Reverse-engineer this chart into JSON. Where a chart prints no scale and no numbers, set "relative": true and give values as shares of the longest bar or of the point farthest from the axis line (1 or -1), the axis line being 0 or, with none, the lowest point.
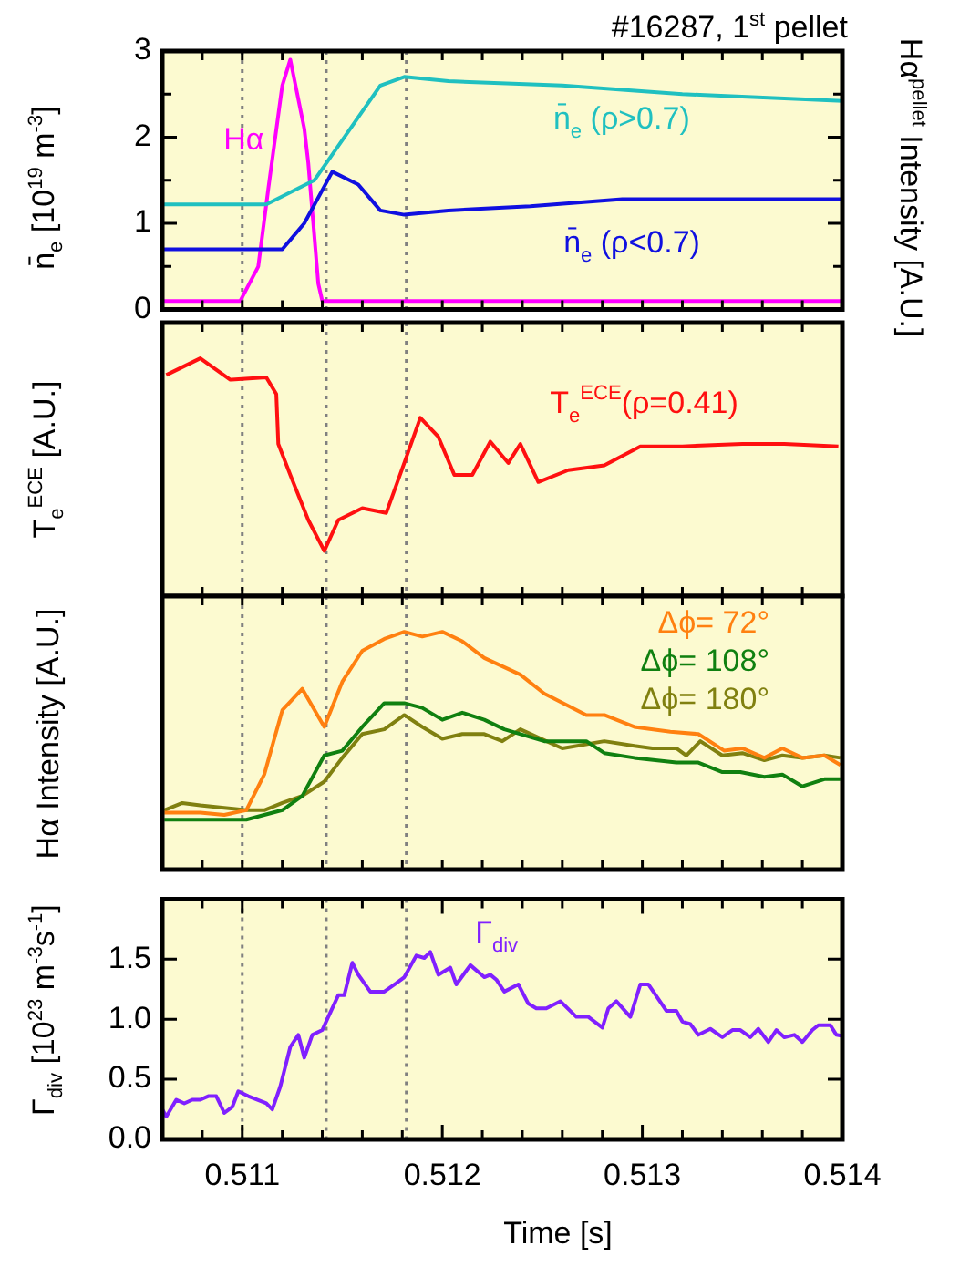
{
  "chart_data": [
    {
      "type": "line",
      "title": "#16287, 1$^{st}$ pellet",
      "ylabel": "n̄$_{e}$ [10$^{19}$ m$^{-3}$]",
      "y2label": "Hα$^{pellet}$ Intensity [A.U.]",
      "xlim": [
        0.5106,
        0.514
      ],
      "xticks": [
        {
          "value": 0.5108,
          "label": null
        },
        {
          "value": 0.511,
          "label": null
        },
        {
          "value": 0.5112,
          "label": null
        },
        {
          "value": 0.5114,
          "label": null
        },
        {
          "value": 0.5116,
          "label": null
        },
        {
          "value": 0.5118,
          "label": null
        },
        {
          "value": 0.512,
          "label": null
        },
        {
          "value": 0.5122,
          "label": null
        },
        {
          "value": 0.5124,
          "label": null
        },
        {
          "value": 0.5126,
          "label": null
        },
        {
          "value": 0.5128,
          "label": null
        },
        {
          "value": 0.513,
          "label": null
        },
        {
          "value": 0.5132,
          "label": null
        },
        {
          "value": 0.5134,
          "label": null
        },
        {
          "value": 0.5136,
          "label": null
        },
        {
          "value": 0.5138,
          "label": null
        }
      ],
      "ylim": [
        0,
        3
      ],
      "yticks": [
        0,
        {
          "value": 0.5,
          "label": null
        },
        1,
        {
          "value": 1.5,
          "label": null
        },
        2,
        {
          "value": 2.5,
          "label": null
        },
        3
      ],
      "tick_labels": "y",
      "marker": "none",
      "grid": false,
      "ref_lines": [
        {
          "axis": "x",
          "value": 0.511,
          "color": "#808080",
          "line_style": "dotted"
        },
        {
          "axis": "x",
          "value": 0.51142,
          "color": "#808080",
          "line_style": "dotted"
        },
        {
          "axis": "x",
          "value": 0.51182,
          "color": "#808080",
          "line_style": "dotted"
        }
      ],
      "series": [
        {
          "name": "n̄$_{e}$ (ρ>0.7)",
          "color": "#20c0c0",
          "x": [
            0.5106,
            0.51112,
            0.51136,
            0.51151,
            0.51169,
            0.51181,
            0.51203,
            0.5126,
            0.5132,
            0.514
          ],
          "values": [
            1.22,
            1.22,
            1.5,
            2.0,
            2.6,
            2.7,
            2.65,
            2.6,
            2.5,
            2.42
          ]
        },
        {
          "name": "n̄$_{e}$ (ρ<0.7)",
          "color": "#1010e0",
          "x": [
            0.5106,
            0.5112,
            0.51131,
            0.51145,
            0.51158,
            0.51169,
            0.51181,
            0.51203,
            0.51244,
            0.5129,
            0.514
          ],
          "values": [
            0.7,
            0.7,
            1.0,
            1.6,
            1.45,
            1.15,
            1.1,
            1.15,
            1.2,
            1.28,
            1.28
          ]
        },
        {
          "name": "Hα",
          "color": "#ff00ff",
          "x": [
            0.5106,
            0.51099,
            0.51108,
            0.51113,
            0.5112,
            0.51124,
            0.51131,
            0.51133,
            0.51138,
            0.5114,
            0.514
          ],
          "values": [
            0.1,
            0.1,
            0.5,
            1.4,
            2.6,
            2.9,
            2.1,
            1.7,
            0.3,
            0.1,
            0.1
          ]
        }
      ]
    },
    {
      "type": "line",
      "ylabel": "T$_{e}$$^{ECE}$ [A.U.]",
      "relative": true,
      "xlim": [
        0.5106,
        0.514
      ],
      "xticks": [
        {
          "value": 0.5108,
          "label": null
        },
        {
          "value": 0.511,
          "label": null
        },
        {
          "value": 0.5112,
          "label": null
        },
        {
          "value": 0.5114,
          "label": null
        },
        {
          "value": 0.5116,
          "label": null
        },
        {
          "value": 0.5118,
          "label": null
        },
        {
          "value": 0.512,
          "label": null
        },
        {
          "value": 0.5122,
          "label": null
        },
        {
          "value": 0.5124,
          "label": null
        },
        {
          "value": 0.5126,
          "label": null
        },
        {
          "value": 0.5128,
          "label": null
        },
        {
          "value": 0.513,
          "label": null
        },
        {
          "value": 0.5132,
          "label": null
        },
        {
          "value": 0.5134,
          "label": null
        },
        {
          "value": 0.5136,
          "label": null
        },
        {
          "value": 0.5138,
          "label": null
        }
      ],
      "tick_labels": false,
      "marker": "none",
      "grid": false,
      "ref_lines": [
        {
          "axis": "x",
          "value": 0.511,
          "color": "#808080",
          "line_style": "dotted"
        },
        {
          "axis": "x",
          "value": 0.51142,
          "color": "#808080",
          "line_style": "dotted"
        },
        {
          "axis": "x",
          "value": 0.51182,
          "color": "#808080",
          "line_style": "dotted"
        }
      ],
      "series": [
        {
          "name": "T$_{e}$$^{ECE}$(ρ=0.41)",
          "color": "#ff1010",
          "x": [
            0.51062,
            0.51079,
            0.51094,
            0.51112,
            0.51117,
            0.51118,
            0.51124,
            0.51133,
            0.51141,
            0.51148,
            0.5116,
            0.51172,
            0.51181,
            0.51189,
            0.51198,
            0.51206,
            0.51215,
            0.51224,
            0.51233,
            0.51239,
            0.51248,
            0.51263,
            0.51281,
            0.51299,
            0.5132,
            0.5135,
            0.51371,
            0.51398
          ],
          "values": [
            0.93,
            1.0,
            0.91,
            0.92,
            0.85,
            0.64,
            0.51,
            0.32,
            0.19,
            0.32,
            0.37,
            0.35,
            0.56,
            0.75,
            0.67,
            0.51,
            0.51,
            0.65,
            0.56,
            0.64,
            0.48,
            0.53,
            0.55,
            0.63,
            0.63,
            0.64,
            0.64,
            0.63
          ]
        }
      ]
    },
    {
      "type": "line",
      "ylabel": "Hα Intensity [A.U.]",
      "relative": true,
      "xlim": [
        0.5106,
        0.514
      ],
      "xticks": [
        {
          "value": 0.5108,
          "label": null
        },
        {
          "value": 0.511,
          "label": null
        },
        {
          "value": 0.5112,
          "label": null
        },
        {
          "value": 0.5114,
          "label": null
        },
        {
          "value": 0.5116,
          "label": null
        },
        {
          "value": 0.5118,
          "label": null
        },
        {
          "value": 0.512,
          "label": null
        },
        {
          "value": 0.5122,
          "label": null
        },
        {
          "value": 0.5124,
          "label": null
        },
        {
          "value": 0.5126,
          "label": null
        },
        {
          "value": 0.5128,
          "label": null
        },
        {
          "value": 0.513,
          "label": null
        },
        {
          "value": 0.5132,
          "label": null
        },
        {
          "value": 0.5134,
          "label": null
        },
        {
          "value": 0.5136,
          "label": null
        },
        {
          "value": 0.5138,
          "label": null
        }
      ],
      "tick_labels": false,
      "marker": "none",
      "grid": false,
      "legend": "top right",
      "ref_lines": [
        {
          "axis": "x",
          "value": 0.511,
          "color": "#808080",
          "line_style": "dotted"
        },
        {
          "axis": "x",
          "value": 0.51142,
          "color": "#808080",
          "line_style": "dotted"
        },
        {
          "axis": "x",
          "value": 0.51182,
          "color": "#808080",
          "line_style": "dotted"
        }
      ],
      "series": [
        {
          "name": "Δϕ= 72°",
          "color": "#ff8010",
          "x": [
            0.51061,
            0.51079,
            0.51091,
            0.51102,
            0.51111,
            0.5112,
            0.5113,
            0.51141,
            0.5115,
            0.5116,
            0.51171,
            0.51181,
            0.5119,
            0.512,
            0.5121,
            0.51221,
            0.51239,
            0.51251,
            0.51272,
            0.51281,
            0.51296,
            0.51314,
            0.51328,
            0.51341,
            0.5135,
            0.51361,
            0.5137,
            0.5138,
            0.51391,
            0.51399
          ],
          "values": [
            0.24,
            0.24,
            0.23,
            0.25,
            0.4,
            0.67,
            0.76,
            0.6,
            0.79,
            0.92,
            0.97,
            1.0,
            0.98,
            1.0,
            0.96,
            0.89,
            0.82,
            0.74,
            0.65,
            0.65,
            0.6,
            0.58,
            0.57,
            0.5,
            0.51,
            0.47,
            0.51,
            0.47,
            0.48,
            0.44
          ]
        },
        {
          "name": "Δϕ= 108°",
          "color": "#108010",
          "x": [
            0.51061,
            0.51102,
            0.51111,
            0.5112,
            0.5113,
            0.51141,
            0.5115,
            0.5116,
            0.51171,
            0.51181,
            0.5119,
            0.512,
            0.5121,
            0.51221,
            0.51231,
            0.51251,
            0.51272,
            0.51281,
            0.51296,
            0.51317,
            0.51328,
            0.5134,
            0.51349,
            0.51361,
            0.5137,
            0.5138,
            0.51391,
            0.51399
          ],
          "values": [
            0.21,
            0.21,
            0.23,
            0.25,
            0.31,
            0.48,
            0.5,
            0.6,
            0.7,
            0.7,
            0.68,
            0.63,
            0.66,
            0.63,
            0.59,
            0.54,
            0.54,
            0.49,
            0.47,
            0.45,
            0.45,
            0.41,
            0.41,
            0.39,
            0.4,
            0.35,
            0.38,
            0.38
          ]
        },
        {
          "name": "Δϕ= 180°",
          "color": "#808010",
          "x": [
            0.51061,
            0.5107,
            0.51079,
            0.51091,
            0.51102,
            0.51111,
            0.5112,
            0.5113,
            0.51141,
            0.5115,
            0.5116,
            0.51171,
            0.51181,
            0.5119,
            0.512,
            0.5121,
            0.51221,
            0.5123,
            0.51239,
            0.5126,
            0.51281,
            0.51296,
            0.51305,
            0.51317,
            0.51322,
            0.51329,
            0.5134,
            0.5135,
            0.51361,
            0.5137,
            0.5138,
            0.51391,
            0.51399
          ],
          "values": [
            0.25,
            0.28,
            0.27,
            0.26,
            0.25,
            0.25,
            0.28,
            0.31,
            0.37,
            0.47,
            0.57,
            0.59,
            0.65,
            0.6,
            0.55,
            0.57,
            0.57,
            0.54,
            0.59,
            0.51,
            0.54,
            0.52,
            0.51,
            0.51,
            0.48,
            0.54,
            0.48,
            0.49,
            0.46,
            0.48,
            0.47,
            0.48,
            0.47
          ]
        }
      ]
    },
    {
      "type": "line",
      "ylabel": "Γ$_{div}$ [10$^{23}$ m$^{-3}$s$^{-1}$]",
      "xlabel": "Time [s]",
      "xlim": [
        0.5106,
        0.514
      ],
      "xticks": [
        {
          "value": 0.5108,
          "label": null
        },
        0.511,
        {
          "value": 0.5112,
          "label": null
        },
        {
          "value": 0.5114,
          "label": null
        },
        {
          "value": 0.5116,
          "label": null
        },
        {
          "value": 0.5118,
          "label": null
        },
        0.512,
        {
          "value": 0.5122,
          "label": null
        },
        {
          "value": 0.5124,
          "label": null
        },
        {
          "value": 0.5126,
          "label": null
        },
        {
          "value": 0.5128,
          "label": null
        },
        0.513,
        {
          "value": 0.5132,
          "label": null
        },
        {
          "value": 0.5134,
          "label": null
        },
        {
          "value": 0.5136,
          "label": null
        },
        {
          "value": 0.5138,
          "label": null
        },
        0.514
      ],
      "ylim": [
        0,
        2
      ],
      "yticks": [
        {
          "value": 0,
          "label": "0.0"
        },
        0.5,
        {
          "value": 1,
          "label": "1.0"
        },
        1.5
      ],
      "marker": "none",
      "grid": false,
      "ref_lines": [
        {
          "axis": "x",
          "value": 0.511,
          "color": "#808080",
          "line_style": "dotted"
        },
        {
          "axis": "x",
          "value": 0.51142,
          "color": "#808080",
          "line_style": "dotted"
        },
        {
          "axis": "x",
          "value": 0.51182,
          "color": "#808080",
          "line_style": "dotted"
        }
      ],
      "series": [
        {
          "name": "Γ$_{div}$",
          "color": "#8020ff",
          "x": [
            0.5106,
            0.51062,
            0.51067,
            0.51071,
            0.51075,
            0.51079,
            0.51083,
            0.51087,
            0.51091,
            0.51095,
            0.51098,
            0.51103,
            0.51112,
            0.51115,
            0.51119,
            0.51124,
            0.51128,
            0.51131,
            0.51135,
            0.5114,
            0.51143,
            0.51148,
            0.51151,
            0.51155,
            0.51158,
            0.51164,
            0.51171,
            0.51177,
            0.51181,
            0.51187,
            0.51191,
            0.51194,
            0.51198,
            0.51204,
            0.51207,
            0.51214,
            0.51221,
            0.51224,
            0.51227,
            0.51231,
            0.51238,
            0.51243,
            0.51247,
            0.51252,
            0.51259,
            0.51267,
            0.51273,
            0.5128,
            0.51283,
            0.51287,
            0.51294,
            0.51299,
            0.51303,
            0.51312,
            0.51317,
            0.5132,
            0.51324,
            0.51328,
            0.51334,
            0.5134,
            0.51345,
            0.51349,
            0.51354,
            0.51358,
            0.51363,
            0.51367,
            0.51371,
            0.51376,
            0.5138,
            0.51385,
            0.51388,
            0.51394,
            0.51397,
            0.514
          ],
          "values": [
            0.25,
            0.19,
            0.33,
            0.3,
            0.33,
            0.33,
            0.36,
            0.36,
            0.22,
            0.27,
            0.4,
            0.36,
            0.3,
            0.25,
            0.44,
            0.77,
            0.87,
            0.68,
            0.87,
            0.91,
            1.02,
            1.2,
            1.2,
            1.47,
            1.37,
            1.23,
            1.23,
            1.3,
            1.35,
            1.53,
            1.51,
            1.56,
            1.37,
            1.43,
            1.29,
            1.45,
            1.35,
            1.37,
            1.33,
            1.23,
            1.29,
            1.13,
            1.09,
            1.09,
            1.15,
            1.02,
            1.02,
            0.93,
            1.09,
            1.15,
            1.02,
            1.29,
            1.29,
            1.07,
            1.07,
            0.98,
            0.96,
            0.87,
            0.92,
            0.85,
            0.91,
            0.91,
            0.85,
            0.92,
            0.81,
            0.91,
            0.85,
            0.87,
            0.81,
            0.91,
            0.95,
            0.95,
            0.87,
            0.86
          ]
        }
      ]
    }
  ]
}
